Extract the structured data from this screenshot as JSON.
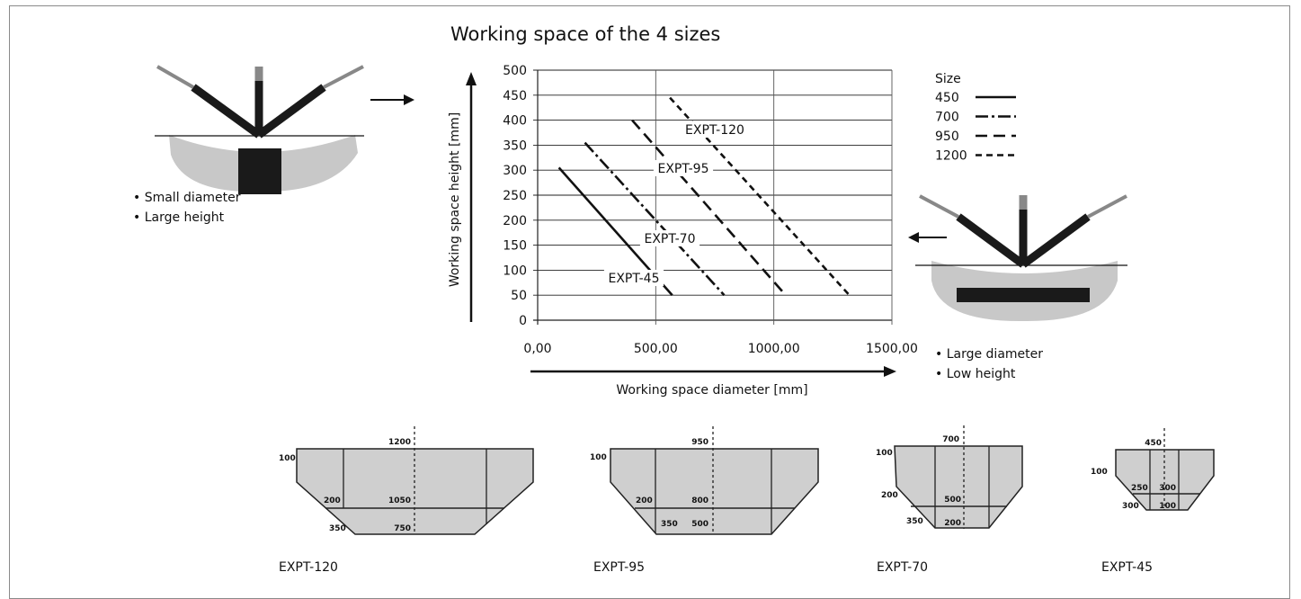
{
  "chart_data": {
    "type": "line",
    "title": "Working space of the 4 sizes",
    "xlabel": "Working space diameter [mm]",
    "ylabel": "Working space height [mm]",
    "xlim": [
      0,
      1500
    ],
    "ylim": [
      0,
      500
    ],
    "x_ticks": [
      "0,00",
      "500,00",
      "1000,00",
      "1500,00"
    ],
    "y_ticks": [
      "0",
      "50",
      "100",
      "150",
      "200",
      "250",
      "300",
      "350",
      "400",
      "450",
      "500"
    ],
    "grid": true,
    "legend_title": "Size",
    "series": [
      {
        "name": "450",
        "label": "EXPT-45",
        "dash": "solid",
        "points": [
          [
            90,
            305
          ],
          [
            570,
            50
          ]
        ]
      },
      {
        "name": "700",
        "label": "EXPT-70",
        "dash": "dashdot",
        "points": [
          [
            200,
            355
          ],
          [
            790,
            50
          ]
        ]
      },
      {
        "name": "950",
        "label": "EXPT-95",
        "dash": "dashed",
        "points": [
          [
            400,
            400
          ],
          [
            1050,
            50
          ]
        ]
      },
      {
        "name": "1200",
        "label": "EXPT-120",
        "dash": "dotted",
        "points": [
          [
            560,
            445
          ],
          [
            1320,
            50
          ]
        ]
      }
    ]
  },
  "left_robot": {
    "notes": [
      "• Small diameter",
      "• Large height"
    ]
  },
  "right_robot": {
    "notes": [
      "• Large diameter",
      "• Low height"
    ]
  },
  "profiles": [
    {
      "label": "EXPT-120",
      "top": "1200",
      "mid": "1050",
      "bottom": "750",
      "h": "100",
      "side": "200",
      "step": "350"
    },
    {
      "label": "EXPT-95",
      "top": "950",
      "mid": "800",
      "bottom": "500",
      "h": "100",
      "side": "200",
      "step": "350"
    },
    {
      "label": "EXPT-70",
      "top": "700",
      "mid": "500",
      "bottom": "200",
      "h": "100",
      "side": "200",
      "step": "350"
    },
    {
      "label": "EXPT-45",
      "top": "450",
      "mid": "300",
      "bottom": "100",
      "h": "100",
      "side": "250",
      "step": "300"
    }
  ],
  "colors": {
    "robot_arm": "#1a1a1a",
    "robot_tip": "#888888",
    "bowl": "#c8c8c8",
    "gridline": "#222222"
  }
}
